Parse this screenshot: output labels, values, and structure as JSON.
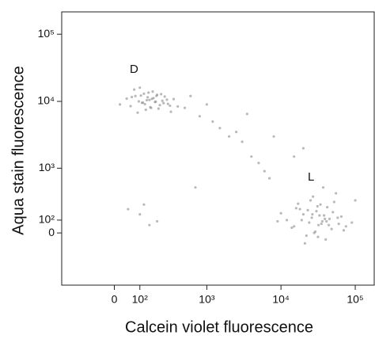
{
  "chart_data": {
    "type": "scatter",
    "xlabel": "Calcein violet fluorescence",
    "ylabel": "Aqua stain fluorescence",
    "xscale": "biexponential",
    "yscale": "biexponential",
    "xlim": [
      -280,
      180000
    ],
    "ylim": [
      -640,
      215000
    ],
    "xticks": [
      0,
      {
        "value": 100,
        "label": "10²"
      },
      {
        "value": 1000,
        "label": "10³"
      },
      {
        "value": 10000,
        "label": "10⁴"
      },
      {
        "value": 100000,
        "label": "10⁵"
      }
    ],
    "yticks": [
      0,
      {
        "value": 100,
        "label": "10²"
      },
      {
        "value": 1000,
        "label": "10³"
      },
      {
        "value": 10000,
        "label": "10⁴"
      },
      {
        "value": 100000,
        "label": "10⁵"
      }
    ],
    "color": "#8a8a8a",
    "x": [
      20,
      45,
      60,
      80,
      95,
      110,
      120,
      130,
      140,
      150,
      160,
      170,
      185,
      200,
      220,
      240,
      260,
      290,
      320,
      350,
      75,
      90,
      105,
      115,
      135,
      145,
      155,
      175,
      190,
      210,
      230,
      250,
      280,
      310,
      65,
      100,
      125,
      165,
      195,
      400,
      12000,
      15000,
      18000,
      20000,
      22000,
      24000,
      25000,
      26000,
      28000,
      30000,
      32000,
      34000,
      36000,
      38000,
      40000,
      42000,
      45000,
      48000,
      50000,
      55000,
      60000,
      65000,
      70000,
      9000,
      10000,
      14000,
      17000,
      19000,
      21000,
      23000,
      27000,
      29000,
      31000,
      33000,
      35000,
      37000,
      39000,
      44000,
      52000,
      58000,
      75000,
      16000,
      26500,
      31500,
      41000,
      500,
      800,
      1200,
      1500,
      2000,
      3000,
      4000,
      5000,
      6000,
      7000,
      1000,
      2500,
      100,
      150,
      120,
      3500,
      8000,
      600,
      50,
      200,
      100000,
      90000,
      15000,
      20000,
      700
    ],
    "values": [
      9000,
      11000,
      8500,
      12000,
      10000,
      9500,
      13000,
      7500,
      11500,
      10500,
      8000,
      14000,
      9800,
      12500,
      8800,
      10200,
      11800,
      9200,
      7000,
      10800,
      15000,
      6800,
      12200,
      9600,
      10400,
      13500,
      8200,
      11200,
      9900,
      7800,
      12800,
      9400,
      10600,
      8600,
      11600,
      16000,
      9100,
      10900,
      12100,
      8400,
      100,
      50,
      200,
      150,
      -20,
      80,
      300,
      120,
      0,
      180,
      60,
      250,
      90,
      140,
      -50,
      220,
      110,
      30,
      170,
      400,
      70,
      130,
      20,
      90,
      160,
      40,
      260,
      100,
      -80,
      190,
      350,
      10,
      230,
      140,
      70,
      500,
      110,
      60,
      280,
      120,
      50,
      210,
      150,
      -30,
      90,
      8000,
      6000,
      5000,
      4000,
      3000,
      2500,
      1500,
      1200,
      900,
      700,
      9000,
      3500,
      150,
      60,
      250,
      6500,
      3000,
      12000,
      200,
      90,
      300,
      80,
      1500,
      2000,
      500
    ],
    "annotations": [
      {
        "text": "D",
        "x": 74,
        "y": 29700
      },
      {
        "text": "L",
        "x": 25400,
        "y": 720
      }
    ]
  }
}
